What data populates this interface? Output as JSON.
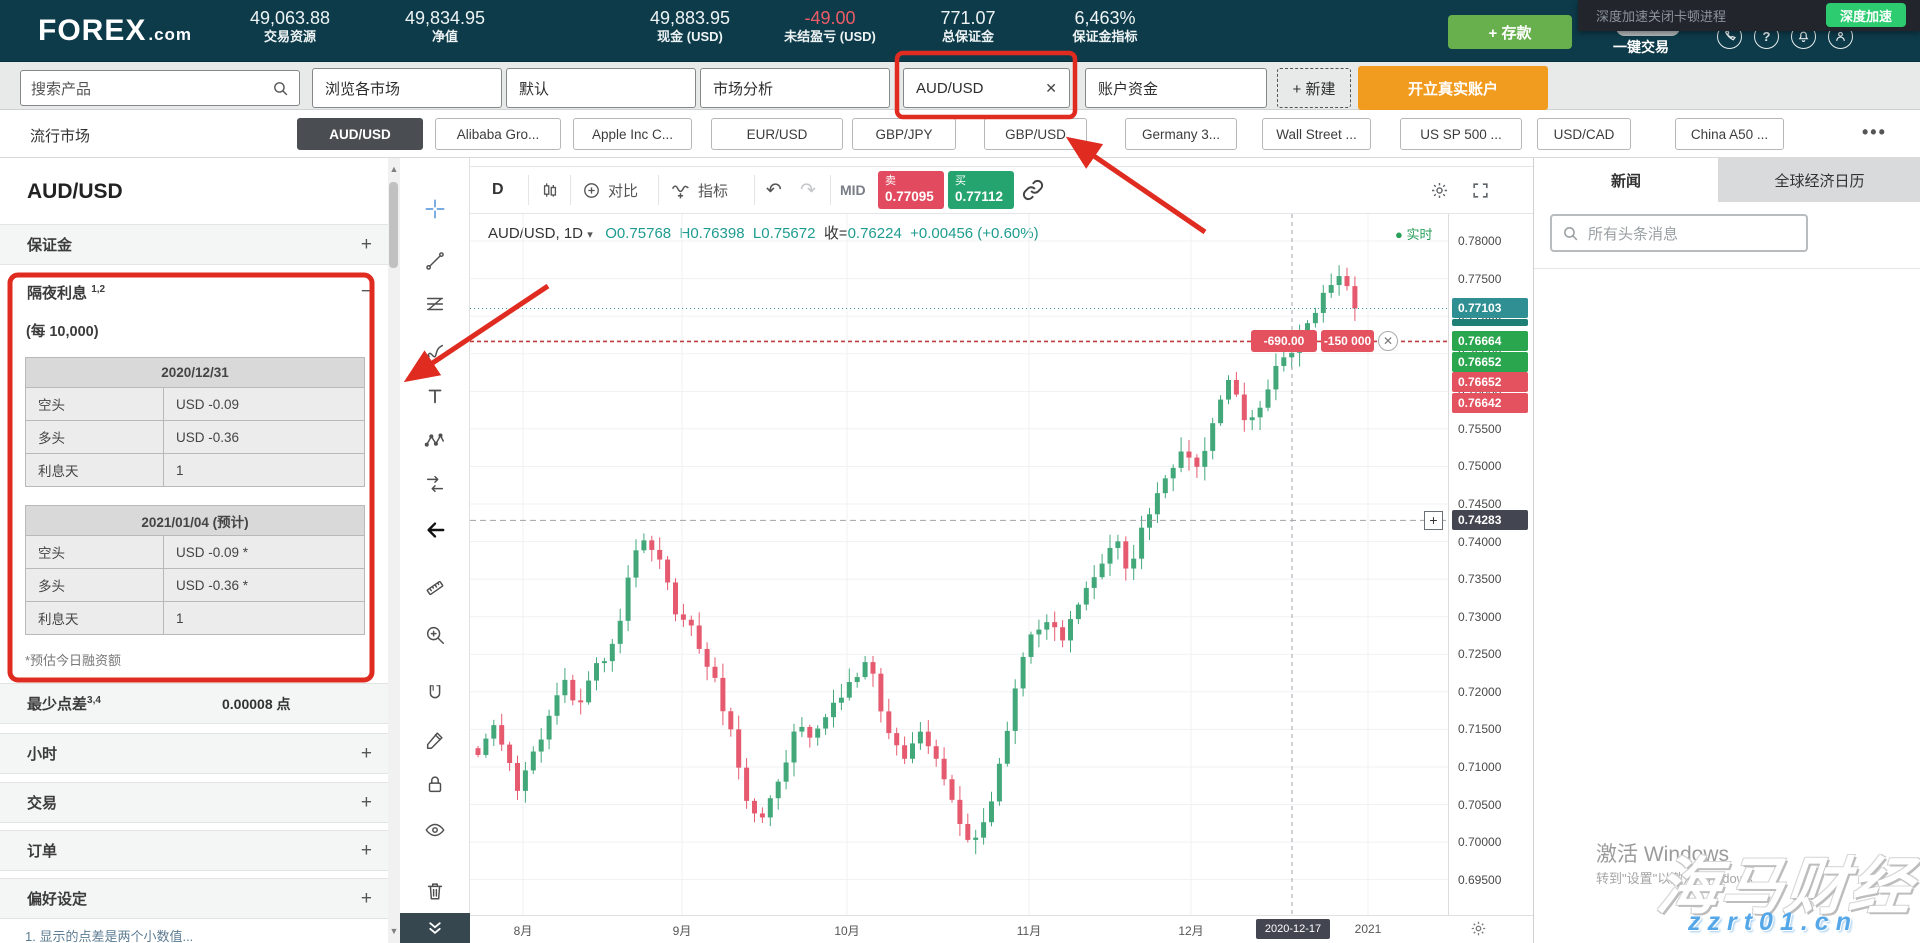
{
  "header": {
    "logo_main": "FOREX",
    "logo_suffix": ".com",
    "stats": [
      {
        "value": "49,063.88",
        "label": "交易资源",
        "negative": false
      },
      {
        "value": "49,834.95",
        "label": "净值",
        "negative": false
      },
      {
        "value": "49,883.95",
        "label": "现金 (USD)",
        "negative": false
      },
      {
        "value": "-49.00",
        "label": "未结盈亏 (USD)",
        "negative": true
      },
      {
        "value": "771.07",
        "label": "总保证金",
        "negative": false
      },
      {
        "value": "6,463%",
        "label": "保证金指标",
        "negative": false
      }
    ],
    "deposit_button": "+ 存款",
    "one_click": "一键交易",
    "overlay": {
      "text": "深度加速关闭卡顿进程",
      "button": "深度加速"
    }
  },
  "tabbar": {
    "search_placeholder": "搜索产品",
    "tabs": [
      {
        "label": "浏览各市场"
      },
      {
        "label": "默认"
      },
      {
        "label": "市场分析"
      },
      {
        "label": "AUD/USD",
        "closable": true
      },
      {
        "label": "账户资金"
      },
      {
        "label": "+ 新建",
        "type": "new"
      },
      {
        "label": "开立真实账户",
        "type": "cta"
      }
    ]
  },
  "watchlist": {
    "title": "流行市场",
    "items": [
      {
        "label": "AUD/USD",
        "selected": true
      },
      {
        "label": "Alibaba Gro..."
      },
      {
        "label": "Apple Inc C..."
      },
      {
        "label": "EUR/USD"
      },
      {
        "label": "GBP/JPY"
      },
      {
        "label": "GBP/USD"
      },
      {
        "label": "Germany 3..."
      },
      {
        "label": "Wall Street ..."
      },
      {
        "label": "US SP 500 ..."
      },
      {
        "label": "USD/CAD"
      },
      {
        "label": "China A50 ..."
      }
    ],
    "more": "•••"
  },
  "sidebar": {
    "title": "AUD/USD",
    "margin_label": "保证金",
    "overnight": {
      "label": "隔夜利息",
      "sup": "1,2",
      "per": "(每 10,000)",
      "tables": [
        {
          "header": "2020/12/31",
          "rows": [
            [
              "空头",
              "USD -0.09"
            ],
            [
              "多头",
              "USD -0.36"
            ],
            [
              "利息天",
              "1"
            ]
          ]
        },
        {
          "header": "2021/01/04 (预计)",
          "rows": [
            [
              "空头",
              "USD -0.09 *"
            ],
            [
              "多头",
              "USD -0.36 *"
            ],
            [
              "利息天",
              "1"
            ]
          ]
        }
      ],
      "footnote": "*预估今日融资额"
    },
    "min_spread": {
      "label": "最少点差",
      "sup": "3,4",
      "value": "0.00008 点"
    },
    "collapsed": [
      "小时",
      "交易",
      "订单",
      "偏好设定"
    ],
    "bottom_note": "1. 显示的点差是两个小数值..."
  },
  "drawbar": {
    "tools": [
      "crosshair",
      "trend-line",
      "fib-retracement",
      "brush",
      "text",
      "xabcd-pattern",
      "forecast",
      "arrow-marker",
      "ruler",
      "zoom-in",
      "magnet",
      "drawing",
      "lock",
      "eye",
      "remove"
    ]
  },
  "chart_data": {
    "type": "candlestick",
    "symbol_label": "AUD/USD, 1D",
    "toolbar": {
      "interval": "D",
      "compare": "对比",
      "indicators": "指标",
      "mid": "MID",
      "sell": {
        "label": "卖",
        "price": "0.77095"
      },
      "buy": {
        "label": "买",
        "price": "0.77112"
      }
    },
    "ohlc": {
      "o": "O0.75768",
      "h": "H0.76398",
      "l": "L0.75672",
      "close_label": "收=",
      "close_value": "0.76224",
      "change": "+0.00456 (+0.60%)"
    },
    "realtime": "实时",
    "y_ticks": [
      "0.78000",
      "0.77500",
      "0.77000",
      "0.76500",
      "0.76000",
      "0.75500",
      "0.75000",
      "0.74500",
      "0.74000",
      "0.73500",
      "0.73000",
      "0.72500",
      "0.72000",
      "0.71500",
      "0.71000",
      "0.70500",
      "0.70000",
      "0.69500"
    ],
    "y_range_top": 0.7836,
    "y_range_bottom": 0.6903,
    "x_labels": [
      {
        "label": "8月",
        "x": 53
      },
      {
        "label": "9月",
        "x": 212
      },
      {
        "label": "10月",
        "x": 377
      },
      {
        "label": "11月",
        "x": 559
      },
      {
        "label": "12月",
        "x": 721
      },
      {
        "label": "2021",
        "x": 898
      }
    ],
    "crosshair": {
      "x": 822,
      "date_label": "2020-12-17",
      "price_label": "0.74283",
      "price": 0.74283
    },
    "current_price": {
      "label": "0.77103",
      "price": 0.77103
    },
    "order_line_price": 0.76664,
    "stacked_tags": [
      {
        "label": "0.76664",
        "color": "green"
      },
      {
        "label": "0.76652",
        "color": "green"
      },
      {
        "label": "0.76652",
        "color": "red"
      },
      {
        "label": "0.76642",
        "color": "red"
      }
    ],
    "pl_tags": [
      "-690.00",
      "-150 000"
    ],
    "num_candles": 112,
    "last_close": 0.77103,
    "up_color": "#42a87a",
    "down_color": "#e55a6e",
    "anchors": [
      [
        0.0,
        0.7125
      ],
      [
        0.02,
        0.7165
      ],
      [
        0.045,
        0.7065
      ],
      [
        0.07,
        0.7135
      ],
      [
        0.095,
        0.7215
      ],
      [
        0.115,
        0.718
      ],
      [
        0.135,
        0.724
      ],
      [
        0.155,
        0.726
      ],
      [
        0.175,
        0.7375
      ],
      [
        0.19,
        0.74
      ],
      [
        0.21,
        0.738
      ],
      [
        0.225,
        0.73
      ],
      [
        0.245,
        0.7285
      ],
      [
        0.265,
        0.723
      ],
      [
        0.285,
        0.716
      ],
      [
        0.305,
        0.7055
      ],
      [
        0.325,
        0.703
      ],
      [
        0.345,
        0.708
      ],
      [
        0.365,
        0.716
      ],
      [
        0.385,
        0.714
      ],
      [
        0.405,
        0.718
      ],
      [
        0.425,
        0.7215
      ],
      [
        0.445,
        0.724
      ],
      [
        0.465,
        0.716
      ],
      [
        0.485,
        0.7105
      ],
      [
        0.505,
        0.714
      ],
      [
        0.525,
        0.71
      ],
      [
        0.545,
        0.7035
      ],
      [
        0.565,
        0.6995
      ],
      [
        0.585,
        0.705
      ],
      [
        0.605,
        0.716
      ],
      [
        0.625,
        0.726
      ],
      [
        0.645,
        0.73
      ],
      [
        0.665,
        0.727
      ],
      [
        0.685,
        0.731
      ],
      [
        0.705,
        0.736
      ],
      [
        0.725,
        0.741
      ],
      [
        0.74,
        0.736
      ],
      [
        0.76,
        0.742
      ],
      [
        0.78,
        0.748
      ],
      [
        0.8,
        0.752
      ],
      [
        0.82,
        0.75
      ],
      [
        0.84,
        0.7565
      ],
      [
        0.86,
        0.762
      ],
      [
        0.875,
        0.755
      ],
      [
        0.89,
        0.758
      ],
      [
        0.91,
        0.7625
      ],
      [
        0.93,
        0.766
      ],
      [
        0.95,
        0.77
      ],
      [
        0.97,
        0.7745
      ],
      [
        0.985,
        0.776
      ],
      [
        1.0,
        0.771
      ]
    ]
  },
  "news_panel": {
    "tabs": [
      {
        "label": "新闻",
        "active": true
      },
      {
        "label": "全球经济日历",
        "active": false
      }
    ],
    "search_placeholder": "所有头条消息"
  },
  "watermark": {
    "line1": "激活 Windows",
    "line2": "转到\"设置\"以激活 Windows",
    "brand": "海马财经",
    "url": "zzrt01.cn"
  },
  "colors": {
    "header_bg": "#0d3b4a",
    "sell_red": "#e24b5f",
    "buy_green": "#26a470",
    "current_teal": "#2f8f93",
    "tag_green": "#2aa64e",
    "tag_red": "#e4515f",
    "tag_dark": "#434651",
    "candle_up": "#42a87a",
    "candle_down": "#e55a6e",
    "deposit_green": "#68af4e",
    "cta_orange": "#f19c1f",
    "accent_red_annotation": "#e02b20",
    "watermark_blue": "#56a7e8"
  }
}
